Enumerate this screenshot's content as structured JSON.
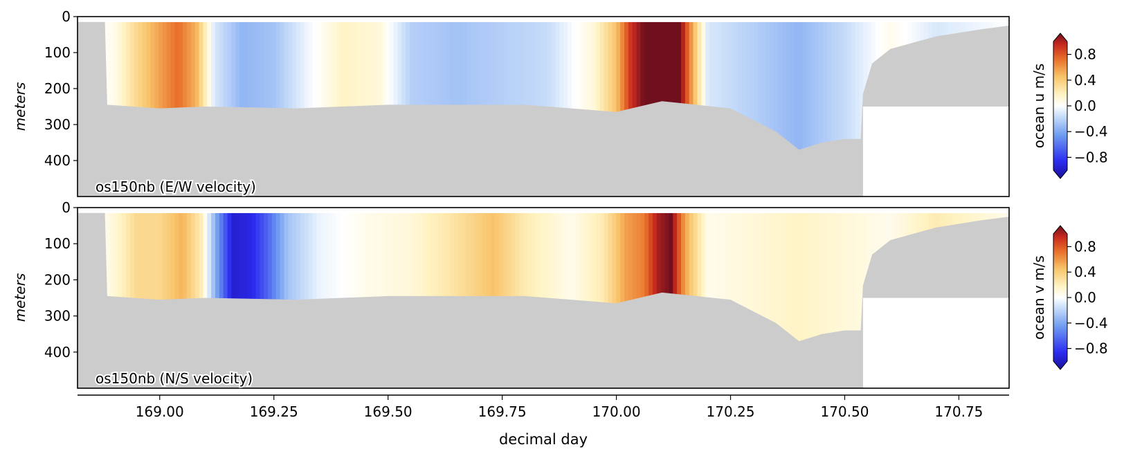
{
  "chart_data": [
    {
      "type": "heatmap",
      "panel_label": "os150nb (E/W velocity)",
      "ylabel": "meters",
      "xlabel": "",
      "xlim": [
        168.82,
        170.86
      ],
      "ylim": [
        500,
        0
      ],
      "yticks": [
        0,
        100,
        200,
        300,
        400
      ],
      "xticks": [
        169.0,
        169.25,
        169.5,
        169.75,
        170.0,
        170.25,
        170.5,
        170.75
      ],
      "colorbar": {
        "label": "ocean u m/s",
        "vmin": -1.0,
        "vmax": 1.0,
        "ticks": [
          "0.8",
          "0.4",
          "0.0",
          "−0.4",
          "−0.8"
        ],
        "tick_values": [
          0.8,
          0.4,
          0.0,
          -0.4,
          -0.8
        ]
      },
      "nodata_color": "#cccccc",
      "data_top_m": 15,
      "velocity_profile": [
        {
          "day": 168.86,
          "u": 0.0
        },
        {
          "day": 168.9,
          "u": 0.05
        },
        {
          "day": 168.95,
          "u": 0.3
        },
        {
          "day": 169.0,
          "u": 0.5
        },
        {
          "day": 169.04,
          "u": 0.65
        },
        {
          "day": 169.08,
          "u": 0.45
        },
        {
          "day": 169.12,
          "u": -0.1
        },
        {
          "day": 169.18,
          "u": -0.3
        },
        {
          "day": 169.25,
          "u": -0.25
        },
        {
          "day": 169.32,
          "u": -0.05
        },
        {
          "day": 169.4,
          "u": 0.15
        },
        {
          "day": 169.48,
          "u": 0.1
        },
        {
          "day": 169.55,
          "u": -0.2
        },
        {
          "day": 169.65,
          "u": -0.25
        },
        {
          "day": 169.75,
          "u": -0.2
        },
        {
          "day": 169.85,
          "u": -0.15
        },
        {
          "day": 169.95,
          "u": 0.1
        },
        {
          "day": 170.0,
          "u": 0.4
        },
        {
          "day": 170.03,
          "u": 0.8
        },
        {
          "day": 170.06,
          "u": 1.0
        },
        {
          "day": 170.1,
          "u": 1.0
        },
        {
          "day": 170.14,
          "u": 1.0
        },
        {
          "day": 170.16,
          "u": 0.6
        },
        {
          "day": 170.2,
          "u": -0.1
        },
        {
          "day": 170.3,
          "u": -0.2
        },
        {
          "day": 170.4,
          "u": -0.3
        },
        {
          "day": 170.5,
          "u": -0.15
        },
        {
          "day": 170.6,
          "u": 0.05
        },
        {
          "day": 170.7,
          "u": -0.1
        },
        {
          "day": 170.86,
          "u": 0.0
        }
      ],
      "bottom_depth_m": [
        {
          "day": 168.82,
          "d": 15
        },
        {
          "day": 168.88,
          "d": 15
        },
        {
          "day": 168.885,
          "d": 245
        },
        {
          "day": 169.0,
          "d": 255
        },
        {
          "day": 169.1,
          "d": 250
        },
        {
          "day": 169.3,
          "d": 255
        },
        {
          "day": 169.5,
          "d": 245
        },
        {
          "day": 169.8,
          "d": 245
        },
        {
          "day": 170.0,
          "d": 265
        },
        {
          "day": 170.1,
          "d": 235
        },
        {
          "day": 170.25,
          "d": 255
        },
        {
          "day": 170.35,
          "d": 320
        },
        {
          "day": 170.4,
          "d": 370
        },
        {
          "day": 170.45,
          "d": 350
        },
        {
          "day": 170.5,
          "d": 340
        },
        {
          "day": 170.535,
          "d": 340
        },
        {
          "day": 170.54,
          "d": 215
        },
        {
          "day": 170.56,
          "d": 130
        },
        {
          "day": 170.6,
          "d": 90
        },
        {
          "day": 170.7,
          "d": 55
        },
        {
          "day": 170.8,
          "d": 35
        },
        {
          "day": 170.86,
          "d": 25
        }
      ],
      "record_end_day": 170.54,
      "record_end_depth_m": 250,
      "record_end_fill_depth_m": 480
    },
    {
      "type": "heatmap",
      "panel_label": "os150nb (N/S velocity)",
      "ylabel": "meters",
      "xlabel": "decimal day",
      "xlim": [
        168.82,
        170.86
      ],
      "ylim": [
        500,
        0
      ],
      "yticks": [
        0,
        100,
        200,
        300,
        400
      ],
      "xticks": [
        169.0,
        169.25,
        169.5,
        169.75,
        170.0,
        170.25,
        170.5,
        170.75
      ],
      "xticklabels": [
        "169.00",
        "169.25",
        "169.50",
        "169.75",
        "170.00",
        "170.25",
        "170.50",
        "170.75"
      ],
      "colorbar": {
        "label": "ocean v m/s",
        "vmin": -1.0,
        "vmax": 1.0,
        "ticks": [
          "0.8",
          "0.4",
          "0.0",
          "−0.4",
          "−0.8"
        ],
        "tick_values": [
          0.8,
          0.4,
          0.0,
          -0.4,
          -0.8
        ]
      },
      "nodata_color": "#cccccc",
      "data_top_m": 15,
      "velocity_profile": [
        {
          "day": 168.86,
          "u": 0.0
        },
        {
          "day": 168.9,
          "u": 0.1
        },
        {
          "day": 168.95,
          "u": 0.3
        },
        {
          "day": 169.0,
          "u": 0.3
        },
        {
          "day": 169.05,
          "u": 0.45
        },
        {
          "day": 169.09,
          "u": 0.2
        },
        {
          "day": 169.12,
          "u": -0.3
        },
        {
          "day": 169.16,
          "u": -0.85
        },
        {
          "day": 169.2,
          "u": -0.8
        },
        {
          "day": 169.24,
          "u": -0.55
        },
        {
          "day": 169.28,
          "u": -0.25
        },
        {
          "day": 169.35,
          "u": -0.05
        },
        {
          "day": 169.45,
          "u": 0.05
        },
        {
          "day": 169.55,
          "u": 0.1
        },
        {
          "day": 169.65,
          "u": 0.25
        },
        {
          "day": 169.73,
          "u": 0.4
        },
        {
          "day": 169.8,
          "u": 0.2
        },
        {
          "day": 169.9,
          "u": 0.05
        },
        {
          "day": 169.97,
          "u": 0.2
        },
        {
          "day": 170.02,
          "u": 0.5
        },
        {
          "day": 170.06,
          "u": 0.6
        },
        {
          "day": 170.09,
          "u": 0.9
        },
        {
          "day": 170.12,
          "u": 1.0
        },
        {
          "day": 170.15,
          "u": 0.5
        },
        {
          "day": 170.2,
          "u": 0.05
        },
        {
          "day": 170.3,
          "u": 0.1
        },
        {
          "day": 170.4,
          "u": 0.15
        },
        {
          "day": 170.5,
          "u": 0.1
        },
        {
          "day": 170.6,
          "u": 0.05
        },
        {
          "day": 170.7,
          "u": 0.2
        },
        {
          "day": 170.86,
          "u": 0.05
        }
      ],
      "bottom_depth_m": [
        {
          "day": 168.82,
          "d": 15
        },
        {
          "day": 168.88,
          "d": 15
        },
        {
          "day": 168.885,
          "d": 245
        },
        {
          "day": 169.0,
          "d": 255
        },
        {
          "day": 169.1,
          "d": 250
        },
        {
          "day": 169.3,
          "d": 255
        },
        {
          "day": 169.5,
          "d": 245
        },
        {
          "day": 169.8,
          "d": 245
        },
        {
          "day": 170.0,
          "d": 265
        },
        {
          "day": 170.1,
          "d": 235
        },
        {
          "day": 170.25,
          "d": 255
        },
        {
          "day": 170.35,
          "d": 320
        },
        {
          "day": 170.4,
          "d": 370
        },
        {
          "day": 170.45,
          "d": 350
        },
        {
          "day": 170.5,
          "d": 340
        },
        {
          "day": 170.535,
          "d": 340
        },
        {
          "day": 170.54,
          "d": 215
        },
        {
          "day": 170.56,
          "d": 130
        },
        {
          "day": 170.6,
          "d": 90
        },
        {
          "day": 170.7,
          "d": 55
        },
        {
          "day": 170.8,
          "d": 35
        },
        {
          "day": 170.86,
          "d": 25
        }
      ],
      "record_end_day": 170.54,
      "record_end_depth_m": 250,
      "record_end_fill_depth_m": 480
    }
  ]
}
